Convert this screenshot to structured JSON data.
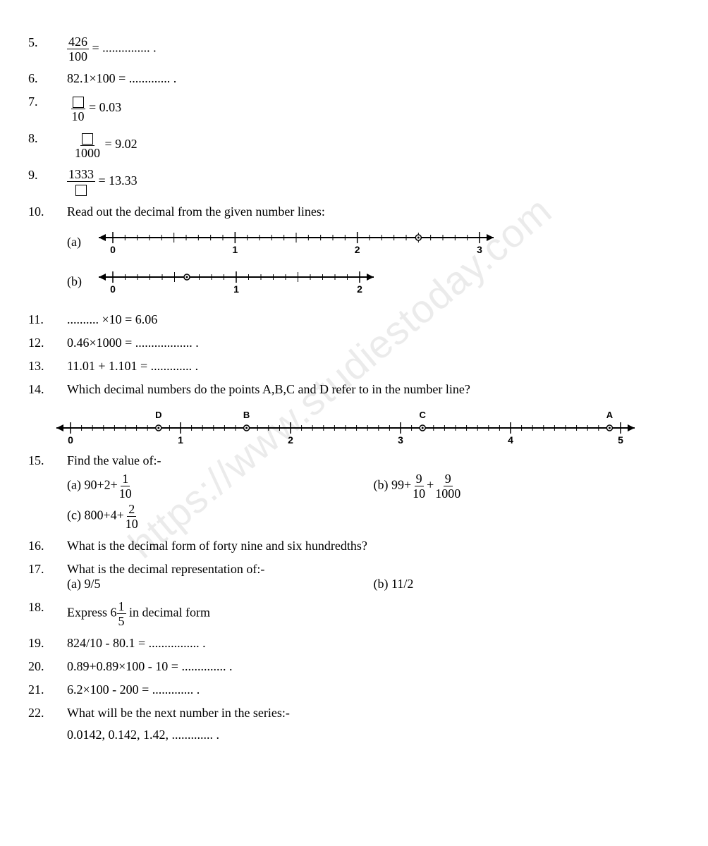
{
  "q5": {
    "num": "5.",
    "frac_n": "426",
    "frac_d": "100",
    "tail": " = ............... ."
  },
  "q6": {
    "num": "6.",
    "text": "82.1×100 = ............. ."
  },
  "q7": {
    "num": "7.",
    "frac_d": "10",
    "tail": " = 0.03"
  },
  "q8": {
    "num": "8.",
    "frac_d": "1000",
    "tail": " = 9.02"
  },
  "q9": {
    "num": "9.",
    "frac_n": "1333",
    "tail": " = 13.33"
  },
  "q10": {
    "num": "10.",
    "text": "Read out the decimal from the given number lines:",
    "a": "(a)",
    "b": "(b)",
    "line_a": {
      "start": 0,
      "end": 3,
      "ticks_per_unit": 10,
      "major_half": true,
      "dot": 2.5,
      "labels": [
        "0",
        "1",
        "2",
        "3"
      ]
    },
    "line_b": {
      "start": 0,
      "end": 2,
      "ticks_per_unit": 10,
      "major_half": true,
      "dot": 0.6,
      "labels": [
        "0",
        "1",
        "2"
      ]
    }
  },
  "q11": {
    "num": "11.",
    "text": ".......... ×10 = 6.06"
  },
  "q12": {
    "num": "12.",
    "text": "0.46×1000 = .................. ."
  },
  "q13": {
    "num": "13.",
    "text": "11.01 + 1.101 = ............. ."
  },
  "q14": {
    "num": "14.",
    "text": "Which decimal numbers do the points A,B,C and D refer to in the number line?",
    "line": {
      "start": 0,
      "end": 5,
      "ticks_per_unit": 10,
      "labels": [
        "0",
        "1",
        "2",
        "3",
        "4",
        "5"
      ],
      "points": [
        {
          "x": 0.8,
          "l": "D"
        },
        {
          "x": 1.6,
          "l": "B"
        },
        {
          "x": 3.2,
          "l": "C"
        },
        {
          "x": 4.9,
          "l": "A"
        }
      ]
    }
  },
  "q15": {
    "num": "15.",
    "text": "Find  the value of:-",
    "a_pre": "(a) 90+2+",
    "a_n": "1",
    "a_d": "10",
    "b_pre": "(b) 99+",
    "b_n1": "9",
    "b_d1": "10",
    "b_plus": "+",
    "b_n2": "9",
    "b_d2": "1000",
    "c_pre": "(c) 800+4+",
    "c_n": "2",
    "c_d": "10"
  },
  "q16": {
    "num": "16.",
    "text": "What is the decimal form of forty nine and six hundredths?"
  },
  "q17": {
    "num": "17.",
    "text": "What is the decimal representation of:-",
    "a": "(a) 9/5",
    "b": "(b) 11/2"
  },
  "q18": {
    "num": "18.",
    "pre": "Express 6",
    "n": "1",
    "d": "5",
    "post": " in decimal form"
  },
  "q19": {
    "num": "19.",
    "text": "824/10 - 80.1 = ................ ."
  },
  "q20": {
    "num": "20.",
    "text": "0.89+0.89×100 - 10 = .............. ."
  },
  "q21": {
    "num": "21.",
    "text": "6.2×100 - 200 = ............. ."
  },
  "q22": {
    "num": "22.",
    "text": "What will be the next number in the series:-",
    "series": "0.0142, 0.142, 1.42, ............. ."
  },
  "watermark": "https://www.studiestoday.com",
  "style": {
    "font_family": "Bookman Old Style",
    "font_size_pt": 14,
    "text_color": "#000000",
    "background": "#ffffff",
    "watermark_color": "rgba(0,0,0,0.08)",
    "watermark_angle_deg": -40,
    "line_color": "#000000",
    "tick_len_minor": 5,
    "tick_len_major": 9,
    "dot_radius": 3
  }
}
